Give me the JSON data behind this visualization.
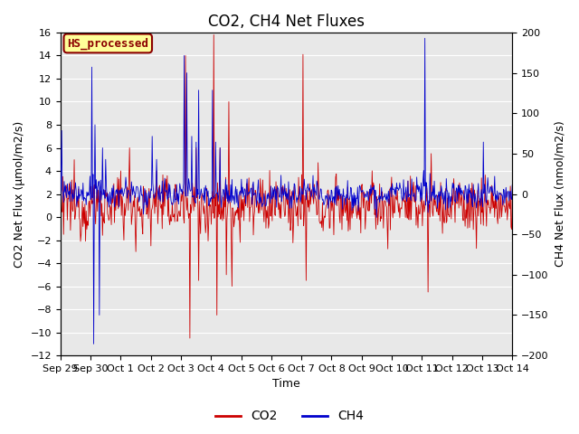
{
  "title": "CO2, CH4 Net Fluxes",
  "xlabel": "Time",
  "ylabel_left": "CO2 Net Flux (μmol/m2/s)",
  "ylabel_right": "CH4 Net Flux (nmol/m2/s)",
  "ylim_left": [
    -12,
    16
  ],
  "ylim_right": [
    -200,
    200
  ],
  "xtick_labels": [
    "Sep 29",
    "Sep 30",
    "Oct 1",
    "Oct 2",
    "Oct 3",
    "Oct 4",
    "Oct 5",
    "Oct 6",
    "Oct 7",
    "Oct 8",
    "Oct 9",
    "Oct 10",
    "Oct 11",
    "Oct 12",
    "Oct 13",
    "Oct 14"
  ],
  "co2_color": "#cc0000",
  "ch4_color": "#0000cc",
  "background_color": "#e8e8e8",
  "figure_background": "#ffffff",
  "label_box_text": "HS_processed",
  "label_box_facecolor": "#ffff99",
  "label_box_edgecolor": "#8b0000",
  "legend_co2": "CO2",
  "legend_ch4": "CH4",
  "title_fontsize": 12,
  "axis_label_fontsize": 9,
  "tick_fontsize": 8,
  "legend_fontsize": 10
}
